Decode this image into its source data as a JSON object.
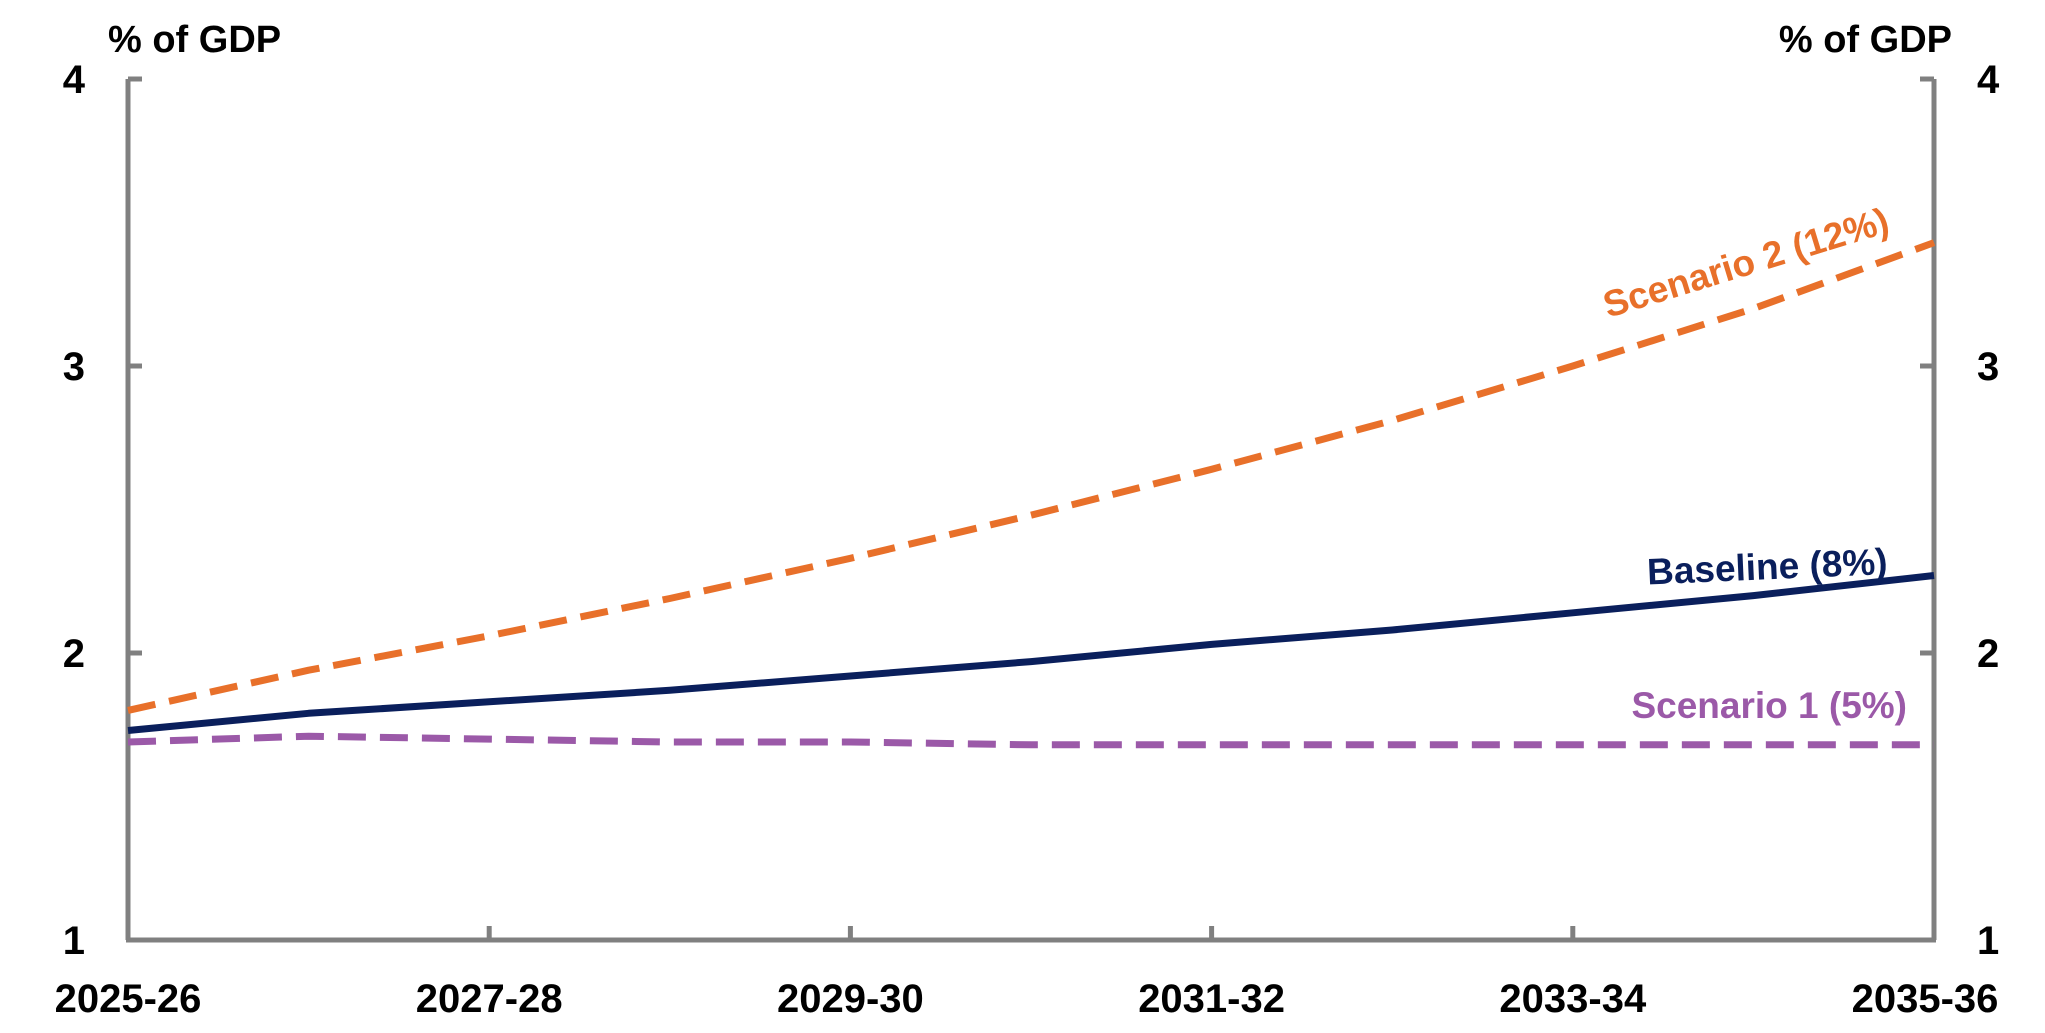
{
  "chart_data": {
    "type": "line",
    "title": "",
    "xlabel": "",
    "ylabel_left": "% of GDP",
    "ylabel_right": "% of GDP",
    "ylim": [
      1,
      4
    ],
    "y_ticks": [
      "1",
      "2",
      "3",
      "4"
    ],
    "x_tick_labels": [
      "2025-26",
      "2027-28",
      "2029-30",
      "2031-32",
      "2033-34",
      "2035-36"
    ],
    "x": [
      "2025-26",
      "2026-27",
      "2027-28",
      "2028-29",
      "2029-30",
      "2030-31",
      "2031-32",
      "2032-33",
      "2033-34",
      "2034-35",
      "2035-36"
    ],
    "grid": false,
    "legend": "none",
    "series": [
      {
        "name": "Scenario 2 (12%)",
        "color": "#E8702A",
        "style": "dashed",
        "values": [
          1.8,
          1.94,
          2.06,
          2.19,
          2.33,
          2.48,
          2.64,
          2.81,
          3.0,
          3.2,
          3.43
        ]
      },
      {
        "name": "Baseline (8%)",
        "color": "#0A1F5C",
        "style": "solid",
        "values": [
          1.73,
          1.79,
          1.83,
          1.87,
          1.92,
          1.97,
          2.03,
          2.08,
          2.14,
          2.2,
          2.27
        ]
      },
      {
        "name": "Scenario 1 (5%)",
        "color": "#9B59A8",
        "style": "dashed",
        "values": [
          1.69,
          1.71,
          1.7,
          1.69,
          1.69,
          1.68,
          1.68,
          1.68,
          1.68,
          1.68,
          1.68
        ]
      }
    ]
  }
}
